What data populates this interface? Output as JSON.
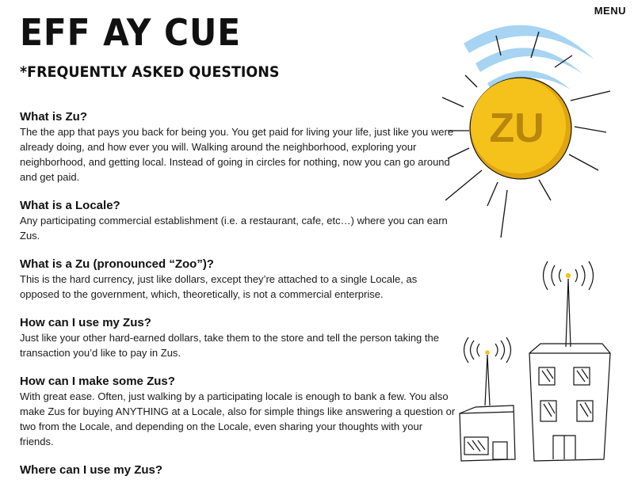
{
  "header": {
    "menu_label": "MENU",
    "title": "EFF AY CUE",
    "subtitle": "*FREQUENTLY ASKED QUESTIONS"
  },
  "faq": [
    {
      "question": "What is Zu?",
      "answer": "The the app that pays you back for being you.  You get paid for living your life, just like you were already doing, and how ever you will.  Walking around the neighborhood, exploring your neighborhood, and getting local.   Instead of going in circles for nothing, now you can go around and get paid."
    },
    {
      "question": "What is a Locale?",
      "answer": "Any participating commercial establishment (i.e. a restaurant, cafe, etc…) where you can earn Zus."
    },
    {
      "question": "What is a Zu (pronounced “Zoo”)?",
      "answer": "This is the hard currency, just like dollars, except they’re attached to a single Locale, as opposed to the government, which, theoretically, is not a commercial enterprise."
    },
    {
      "question": "How can I use my Zus?",
      "answer": "Just like your other hard-earned dollars, take them to the store and tell the person taking the transaction you’d like to pay in Zus."
    },
    {
      "question": "How can I make some Zus?",
      "answer": "With great ease.  Often, just walking by a participating locale is enough to bank a few. You also make Zus for buying ANYTHING at a Locale, also for simple things like answering a question or two from the Locale, and depending on the Locale, even sharing your thoughts with your friends."
    },
    {
      "question": "Where can I use my Zus?",
      "answer": ""
    }
  ],
  "illustrations": {
    "coin_text": "ZU",
    "colors": {
      "coin_fill": "#f5c21b",
      "coin_edge": "#e0a50f",
      "coin_text": "#b8860b",
      "signal_arcs": "#a6d4f2",
      "lines": "#111111",
      "beacon": "#f5c21b"
    }
  }
}
